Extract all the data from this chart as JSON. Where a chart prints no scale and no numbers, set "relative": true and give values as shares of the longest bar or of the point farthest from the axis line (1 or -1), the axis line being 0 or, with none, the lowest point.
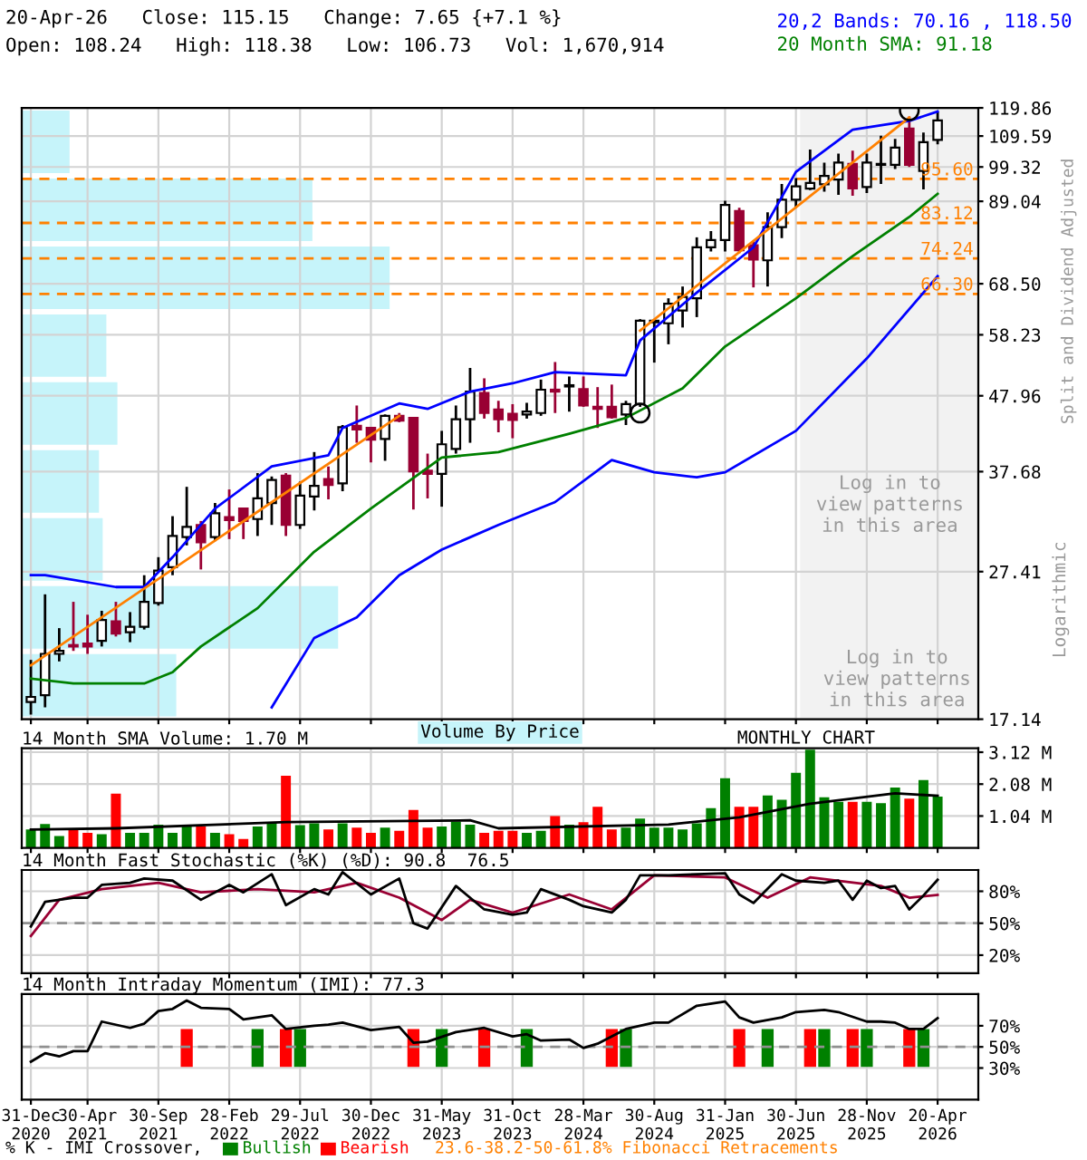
{
  "chart_data": [
    {
      "type": "candlestick",
      "x": [
        "2020-12",
        "2021-01",
        "2021-02",
        "2021-03",
        "2021-04",
        "2021-05",
        "2021-06",
        "2021-07",
        "2021-08",
        "2021-09",
        "2021-10",
        "2021-11",
        "2021-12",
        "2022-01",
        "2022-02",
        "2022-03",
        "2022-04",
        "2022-05",
        "2022-06",
        "2022-07",
        "2022-08",
        "2022-09",
        "2022-10",
        "2022-11",
        "2022-12",
        "2023-01",
        "2023-02",
        "2023-03",
        "2023-04",
        "2023-05",
        "2023-06",
        "2023-07",
        "2023-08",
        "2023-09",
        "2023-10",
        "2023-11",
        "2023-12",
        "2024-01",
        "2024-02",
        "2024-03",
        "2024-04",
        "2024-05",
        "2024-06",
        "2024-07",
        "2024-08",
        "2024-09",
        "2024-10",
        "2024-11",
        "2024-12",
        "2025-01",
        "2025-02",
        "2025-03",
        "2025-04",
        "2025-05",
        "2025-06",
        "2025-07",
        "2025-08",
        "2025-09",
        "2025-10",
        "2025-11",
        "2025-12",
        "2026-01",
        "2026-02",
        "2026-03",
        "2026-04"
      ],
      "ohlc": [
        [
          18.1,
          20.7,
          17.4,
          18.4
        ],
        [
          18.5,
          25.5,
          17.8,
          21.1
        ],
        [
          21.1,
          22.9,
          20.6,
          21.3
        ],
        [
          21.7,
          24.9,
          21.3,
          21.6
        ],
        [
          21.8,
          23.9,
          21.1,
          21.6
        ],
        [
          22.0,
          24.2,
          21.6,
          23.5
        ],
        [
          23.4,
          24.9,
          22.3,
          22.5
        ],
        [
          22.6,
          24.1,
          21.9,
          23.0
        ],
        [
          23.0,
          27.1,
          22.8,
          24.9
        ],
        [
          24.8,
          28.7,
          24.6,
          27.5
        ],
        [
          27.8,
          32.7,
          27.1,
          30.7
        ],
        [
          30.6,
          35.9,
          29.8,
          31.6
        ],
        [
          31.8,
          32.2,
          27.6,
          30.1
        ],
        [
          30.6,
          34.1,
          30.2,
          33.0
        ],
        [
          32.6,
          35.6,
          30.4,
          32.3
        ],
        [
          33.5,
          33.5,
          30.4,
          32.2
        ],
        [
          32.4,
          37.5,
          30.7,
          34.6
        ],
        [
          34.1,
          37.1,
          31.8,
          36.7
        ],
        [
          37.2,
          37.5,
          30.7,
          31.8
        ],
        [
          31.8,
          36.5,
          31.4,
          34.9
        ],
        [
          34.8,
          40.1,
          33.3,
          36.0
        ],
        [
          36.8,
          38.3,
          34.5,
          36.1
        ],
        [
          36.3,
          43.7,
          35.4,
          43.4
        ],
        [
          43.6,
          46.5,
          41.3,
          43.1
        ],
        [
          43.3,
          43.4,
          38.8,
          41.7
        ],
        [
          41.8,
          45.2,
          39.0,
          45.0
        ],
        [
          45.0,
          45.4,
          44.1,
          44.3
        ],
        [
          44.7,
          44.7,
          33.4,
          37.7
        ],
        [
          37.8,
          39.9,
          34.6,
          37.4
        ],
        [
          37.4,
          42.9,
          33.7,
          41.1
        ],
        [
          40.5,
          46.5,
          39.9,
          44.5
        ],
        [
          44.5,
          52.4,
          41.3,
          48.6
        ],
        [
          48.4,
          50.7,
          44.6,
          45.4
        ],
        [
          45.9,
          47.2,
          42.7,
          44.5
        ],
        [
          45.3,
          46.7,
          41.9,
          44.4
        ],
        [
          45.2,
          46.9,
          44.6,
          45.6
        ],
        [
          45.4,
          50.5,
          45.0,
          48.9
        ],
        [
          48.9,
          53.4,
          45.4,
          48.6
        ],
        [
          49.4,
          51.0,
          45.6,
          49.6
        ],
        [
          49.0,
          51.0,
          46.3,
          46.5
        ],
        [
          46.3,
          49.3,
          43.3,
          46.0
        ],
        [
          46.3,
          49.7,
          44.6,
          44.8
        ],
        [
          45.2,
          47.2,
          43.7,
          46.7
        ],
        [
          46.7,
          61.2,
          46.3,
          60.9
        ],
        [
          60.6,
          61.2,
          53.3,
          60.9
        ],
        [
          60.4,
          65.4,
          56.5,
          64.3
        ],
        [
          62.9,
          67.9,
          59.6,
          65.7
        ],
        [
          65.4,
          79.4,
          61.6,
          76.9
        ],
        [
          76.9,
          81.0,
          75.9,
          78.7
        ],
        [
          78.7,
          89.2,
          75.9,
          88.0
        ],
        [
          86.3,
          87.2,
          75.5,
          76.2
        ],
        [
          77.4,
          78.5,
          67.7,
          74.0
        ],
        [
          73.8,
          86.0,
          67.9,
          82.0
        ],
        [
          82.0,
          94.1,
          79.2,
          89.5
        ],
        [
          89.5,
          95.9,
          87.2,
          93.4
        ],
        [
          92.7,
          105.0,
          92.3,
          94.4
        ],
        [
          94.0,
          100.7,
          91.8,
          96.5
        ],
        [
          95.4,
          103.6,
          90.9,
          100.7
        ],
        [
          100.3,
          104.6,
          90.6,
          92.8
        ],
        [
          93.2,
          103.6,
          91.4,
          100.7
        ],
        [
          100.0,
          109.7,
          94.1,
          100.3
        ],
        [
          100.0,
          108.6,
          98.7,
          105.6
        ],
        [
          112.2,
          116.6,
          99.3,
          100.0
        ],
        [
          98.1,
          110.8,
          92.5,
          107.5
        ],
        [
          108.24,
          118.38,
          106.73,
          115.15
        ]
      ],
      "colors": [
        "#ffffff",
        "#ffffff",
        "#ffffff",
        "#990033",
        "#990033",
        "#ffffff",
        "#990033",
        "#ffffff",
        "#ffffff",
        "#ffffff",
        "#ffffff",
        "#ffffff",
        "#990033",
        "#ffffff",
        "#990033",
        "#990033",
        "#ffffff",
        "#ffffff",
        "#990033",
        "#ffffff",
        "#ffffff",
        "#990033",
        "#ffffff",
        "#990033",
        "#990033",
        "#ffffff",
        "#990033",
        "#990033",
        "#990033",
        "#ffffff",
        "#ffffff",
        "#ffffff",
        "#990033",
        "#990033",
        "#990033",
        "#ffffff",
        "#ffffff",
        "#990033",
        "#ffffff",
        "#990033",
        "#990033",
        "#990033",
        "#ffffff",
        "#ffffff",
        "#ffffff",
        "#ffffff",
        "#ffffff",
        "#ffffff",
        "#ffffff",
        "#ffffff",
        "#990033",
        "#990033",
        "#ffffff",
        "#ffffff",
        "#ffffff",
        "#ffffff",
        "#ffffff",
        "#ffffff",
        "#990033",
        "#ffffff",
        "#ffffff",
        "#ffffff",
        "#990033",
        "#ffffff",
        "#ffffff"
      ],
      "series": [
        {
          "type": "line",
          "name": "20,2 Bands: 70.16 , 118.50",
          "color": "#0000ff",
          "x": [
            "2020-12",
            "2021-01",
            "2021-06",
            "2021-08",
            "2021-10",
            "2022-01",
            "2022-05",
            "2022-09",
            "2022-10",
            "2023-02",
            "2023-04",
            "2023-07",
            "2023-10",
            "2024-01",
            "2024-06",
            "2024-07",
            "2024-11",
            "2025-03",
            "2025-06",
            "2025-10",
            "2026-02",
            "2026-04"
          ],
          "values": [
            27.1,
            27.1,
            26.1,
            26.1,
            28.7,
            33.5,
            38.3,
            39.7,
            43.3,
            46.8,
            46.0,
            48.6,
            49.9,
            51.7,
            51.2,
            57.2,
            66.6,
            76.9,
            97.8,
            111.8,
            115.0,
            118.5
          ]
        },
        {
          "type": "line",
          "color": "#0000ff",
          "x": [
            "2022-05",
            "2022-08",
            "2022-11",
            "2023-02",
            "2023-05",
            "2023-09",
            "2024-01",
            "2024-05",
            "2024-08",
            "2024-11",
            "2025-01",
            "2025-06",
            "2025-11",
            "2026-04"
          ],
          "values": [
            17.8,
            22.2,
            23.7,
            27.1,
            29.4,
            31.8,
            34.2,
            39.1,
            37.6,
            37.0,
            37.6,
            42.9,
            54.0,
            70.16
          ]
        },
        {
          "type": "line",
          "name": "20 Month SMA: 91.18",
          "color": "#008000",
          "x": [
            "2020-12",
            "2021-03",
            "2021-08",
            "2021-10",
            "2021-12",
            "2022-04",
            "2022-08",
            "2022-12",
            "2023-05",
            "2023-09",
            "2024-02",
            "2024-06",
            "2024-10",
            "2025-01",
            "2025-06",
            "2025-10",
            "2026-02",
            "2026-04"
          ],
          "values": [
            19.5,
            19.2,
            19.2,
            19.9,
            21.6,
            24.4,
            29.2,
            33.5,
            39.4,
            40.1,
            42.5,
            44.7,
            49.1,
            56.1,
            65.4,
            74.8,
            84.7,
            91.18
          ]
        },
        {
          "type": "line",
          "color": "#ff8000",
          "x": [
            "2020-12",
            "2023-02"
          ],
          "values": [
            20.35,
            45.0
          ]
        },
        {
          "type": "line",
          "color": "#ff8000",
          "x": [
            "2024-07",
            "2026-02"
          ],
          "values": [
            59.0,
            116.2
          ]
        },
        {
          "type": "scatter",
          "marker": "circle",
          "color": "#000000",
          "x": [
            "2024-07",
            "2026-02"
          ],
          "values": [
            45.4,
            118.8
          ]
        }
      ],
      "log": "y",
      "ylim": [
        17.14,
        119.86
      ],
      "yticks": [
        17.14,
        27.41,
        37.68,
        47.96,
        58.23,
        {
          "value": 68.5,
          "label": "68.50"
        },
        89.04,
        99.32,
        109.59,
        119.86
      ],
      "xlim": [
        "2020-11-12",
        "2026-06-28"
      ],
      "tick_labels": "y",
      "grid": true,
      "legend": "top right",
      "ylabel": "Split and Dividend Adjusted",
      "ref_lines": [
        {
          "axis": "y",
          "value": 95.6,
          "label": "95.60",
          "color": "#ff8000",
          "line_style": "dashed"
        },
        {
          "axis": "y",
          "value": 83.12,
          "label": "83.12",
          "color": "#ff8000",
          "line_style": "dashed"
        },
        {
          "axis": "y",
          "value": 74.24,
          "label": "74.24",
          "color": "#ff8000",
          "line_style": "dashed"
        },
        {
          "axis": "y",
          "value": 66.3,
          "label": "66.30",
          "color": "#ff8000",
          "line_style": "dashed"
        }
      ],
      "bands": [
        {
          "axis": "x",
          "from": "2025-06-13",
          "to": "2026-06-28",
          "label": "Log in to\nview patterns\nin this area",
          "color": "#f2f2f2"
        }
      ],
      "annotations": [
        "20-Apr-26   Close: 115.15   Change: 7.65 {+7.1 %}",
        "Open: 108.24   High: 118.38   Low: 106.73   Vol: 1,670,914",
        "Log in to\nview patterns\nin this area",
        "Logarithmic"
      ]
    },
    {
      "type": "bar",
      "orientation": "horizontal",
      "relative": true,
      "legend": "bottom",
      "categories": [
        null,
        null,
        null,
        null,
        null,
        null,
        null,
        null,
        null
      ],
      "series": [
        {
          "name": "Volume By Price",
          "color": "#c6f4fa",
          "values": [
            0.13,
            0.79,
            1,
            0.23,
            0.26,
            0.21,
            0.22,
            0.86,
            0.42
          ]
        }
      ]
    },
    {
      "type": "bar",
      "title": "14 Month SMA Volume: 1.70 M",
      "x": [
        "2020-12",
        "2021-01",
        "2021-02",
        "2021-03",
        "2021-04",
        "2021-05",
        "2021-06",
        "2021-07",
        "2021-08",
        "2021-09",
        "2021-10",
        "2021-11",
        "2021-12",
        "2022-01",
        "2022-02",
        "2022-03",
        "2022-04",
        "2022-05",
        "2022-06",
        "2022-07",
        "2022-08",
        "2022-09",
        "2022-10",
        "2022-11",
        "2022-12",
        "2023-01",
        "2023-02",
        "2023-03",
        "2023-04",
        "2023-05",
        "2023-06",
        "2023-07",
        "2023-08",
        "2023-09",
        "2023-10",
        "2023-11",
        "2023-12",
        "2024-01",
        "2024-02",
        "2024-03",
        "2024-04",
        "2024-05",
        "2024-06",
        "2024-07",
        "2024-08",
        "2024-09",
        "2024-10",
        "2024-11",
        "2024-12",
        "2025-01",
        "2025-02",
        "2025-03",
        "2025-04",
        "2025-05",
        "2025-06",
        "2025-07",
        "2025-08",
        "2025-09",
        "2025-10",
        "2025-11",
        "2025-12",
        "2026-01",
        "2026-02",
        "2026-03",
        "2026-04"
      ],
      "values": [
        0.6,
        0.78,
        0.39,
        0.58,
        0.49,
        0.45,
        1.77,
        0.49,
        0.49,
        0.76,
        0.49,
        0.7,
        0.7,
        0.49,
        0.45,
        0.29,
        0.7,
        0.82,
        2.35,
        0.74,
        0.8,
        0.6,
        0.8,
        0.66,
        0.49,
        0.66,
        0.56,
        1.24,
        0.66,
        0.7,
        0.86,
        0.76,
        0.49,
        0.56,
        0.56,
        0.49,
        0.56,
        1.04,
        0.76,
        0.84,
        1.34,
        0.6,
        0.66,
        0.96,
        0.66,
        0.66,
        0.6,
        0.8,
        1.3,
        2.27,
        1.34,
        1.34,
        1.71,
        1.57,
        2.45,
        3.2,
        1.65,
        1.5,
        1.5,
        1.5,
        1.46,
        1.97,
        1.61,
        2.21,
        1.67
      ],
      "colors": [
        "#008000",
        "#008000",
        "#008000",
        "#ff0000",
        "#ff0000",
        "#008000",
        "#ff0000",
        "#008000",
        "#008000",
        "#008000",
        "#008000",
        "#008000",
        "#ff0000",
        "#008000",
        "#ff0000",
        "#ff0000",
        "#008000",
        "#008000",
        "#ff0000",
        "#008000",
        "#008000",
        "#ff0000",
        "#008000",
        "#ff0000",
        "#ff0000",
        "#008000",
        "#ff0000",
        "#ff0000",
        "#ff0000",
        "#008000",
        "#008000",
        "#008000",
        "#ff0000",
        "#ff0000",
        "#ff0000",
        "#008000",
        "#008000",
        "#ff0000",
        "#008000",
        "#ff0000",
        "#ff0000",
        "#ff0000",
        "#008000",
        "#008000",
        "#008000",
        "#008000",
        "#008000",
        "#008000",
        "#008000",
        "#008000",
        "#ff0000",
        "#ff0000",
        "#008000",
        "#008000",
        "#008000",
        "#008000",
        "#008000",
        "#008000",
        "#ff0000",
        "#008000",
        "#008000",
        "#008000",
        "#ff0000",
        "#008000",
        "#008000"
      ],
      "series": [
        {
          "type": "line",
          "color": "#000000",
          "x": [
            "2020-12",
            "2021-06",
            "2022-06",
            "2023-07",
            "2023-09",
            "2024-09",
            "2025-02",
            "2025-07",
            "2026-01",
            "2026-04"
          ],
          "values": [
            0.6,
            0.64,
            0.84,
            0.9,
            0.64,
            0.76,
            1.0,
            1.44,
            1.78,
            1.7
          ]
        }
      ],
      "ylim": [
        0,
        3.25
      ],
      "yticks": [
        {
          "value": 1.04,
          "label": "1.04 M"
        },
        {
          "value": 2.08,
          "label": "2.08 M"
        },
        {
          "value": 3.12,
          "label": "3.12 M"
        }
      ],
      "xlim": [
        "2020-11-12",
        "2026-06-28"
      ],
      "tick_labels": "y",
      "grid": true,
      "annotations": [
        "MONTHLY CHART"
      ]
    },
    {
      "type": "line",
      "title": "14 Month Fast Stochastic (%K) (%D): 90.8  76.5",
      "series": [
        {
          "color": "#990033",
          "x": [
            "2020-12",
            "2021-02",
            "2021-05",
            "2021-09",
            "2021-12",
            "2022-04",
            "2022-08",
            "2022-11",
            "2023-02",
            "2023-05",
            "2023-07",
            "2023-10",
            "2024-02",
            "2024-05",
            "2024-08",
            "2025-01",
            "2025-04",
            "2025-07",
            "2025-12",
            "2026-02",
            "2026-04"
          ],
          "values": [
            38,
            72,
            82,
            88,
            79,
            82,
            79,
            88,
            74,
            53,
            72,
            60,
            77,
            63,
            95,
            93,
            74,
            93,
            85,
            74,
            76.5
          ]
        },
        {
          "color": "#000000",
          "x": [
            "2020-12",
            "2021-01",
            "2021-03",
            "2021-04",
            "2021-05",
            "2021-07",
            "2021-08",
            "2021-10",
            "2021-12",
            "2022-02",
            "2022-03",
            "2022-05",
            "2022-06",
            "2022-08",
            "2022-09",
            "2022-10",
            "2022-12",
            "2023-02",
            "2023-03",
            "2023-04",
            "2023-06",
            "2023-08",
            "2023-10",
            "2023-11",
            "2023-12",
            "2024-02",
            "2024-03",
            "2024-05",
            "2024-06",
            "2024-07",
            "2024-09",
            "2025-01",
            "2025-02",
            "2025-03",
            "2025-05",
            "2025-06",
            "2025-08",
            "2025-09",
            "2025-10",
            "2025-11",
            "2025-12",
            "2026-01",
            "2026-02",
            "2026-03",
            "2026-04"
          ],
          "values": [
            47,
            70,
            74,
            74,
            86,
            88,
            92,
            90,
            72,
            86,
            79,
            96,
            67,
            82,
            77,
            98,
            77,
            92,
            50,
            45,
            85,
            63,
            58,
            60,
            82,
            72,
            66,
            60,
            72,
            95,
            95,
            97,
            77,
            69,
            96,
            90,
            88,
            90,
            72,
            90,
            83,
            85,
            63,
            76,
            90.8
          ]
        }
      ],
      "ylim": [
        3,
        100
      ],
      "yticks": [
        {
          "value": 20,
          "label": "20%"
        },
        {
          "value": 50,
          "label": "50%"
        },
        {
          "value": 80,
          "label": "80%"
        }
      ],
      "xlim": [
        "2020-11-12",
        "2026-06-28"
      ],
      "tick_labels": "y",
      "grid": true,
      "ref_lines": [
        {
          "axis": "y",
          "value": 50,
          "color": "#909090",
          "line_style": "dashed"
        }
      ]
    },
    {
      "type": "line",
      "title": "14 Month Intraday Momentum (IMI): 77.3",
      "series": [
        {
          "type": "bar",
          "name": "Bearish",
          "color": "#ff0000",
          "x": [
            "2021-11",
            "2022-06",
            "2023-03",
            "2023-08",
            "2024-05",
            "2025-02",
            "2025-07",
            "2025-10",
            "2026-02"
          ],
          "base": [
            31,
            31,
            31,
            31,
            31,
            31,
            31,
            31,
            31
          ],
          "values": [
            36,
            36,
            36,
            36,
            36,
            36,
            36,
            36,
            36
          ]
        },
        {
          "type": "bar",
          "name": "Bullish",
          "color": "#008000",
          "x": [
            "2022-04",
            "2022-07",
            "2023-05",
            "2023-11",
            "2024-06",
            "2025-04",
            "2025-08",
            "2025-11",
            "2026-03"
          ],
          "base": [
            31,
            31,
            31,
            31,
            31,
            31,
            31,
            31,
            31
          ],
          "values": [
            36,
            36,
            36,
            36,
            36,
            36,
            36,
            36,
            36
          ]
        },
        {
          "color": "#000000",
          "x": [
            "2020-12",
            "2021-01",
            "2021-02",
            "2021-03",
            "2021-04",
            "2021-05",
            "2021-07",
            "2021-08",
            "2021-09",
            "2021-10",
            "2021-11",
            "2021-12",
            "2022-02",
            "2022-03",
            "2022-04",
            "2022-05",
            "2022-06",
            "2022-08",
            "2022-09",
            "2022-10",
            "2022-12",
            "2023-02",
            "2023-03",
            "2023-04",
            "2023-06",
            "2023-08",
            "2023-10",
            "2023-11",
            "2023-12",
            "2024-02",
            "2024-03",
            "2024-04",
            "2024-06",
            "2024-08",
            "2024-09",
            "2024-11",
            "2025-01",
            "2025-02",
            "2025-03",
            "2025-05",
            "2025-06",
            "2025-08",
            "2025-09",
            "2025-11",
            "2025-12",
            "2026-01",
            "2026-02",
            "2026-03",
            "2026-04"
          ],
          "values": [
            36,
            44,
            41,
            46,
            46,
            74,
            68,
            72,
            84,
            86,
            94,
            87,
            86,
            76,
            78,
            80,
            67,
            70,
            71,
            73,
            66,
            69,
            54,
            55,
            64,
            68,
            60,
            62,
            56,
            57,
            49,
            53,
            67,
            73,
            73,
            89,
            93,
            78,
            73,
            78,
            83,
            85,
            83,
            74,
            74,
            73,
            67,
            67,
            77.3
          ]
        }
      ],
      "ylim": [
        0,
        100
      ],
      "yticks": [
        {
          "value": 30,
          "label": "30%"
        },
        {
          "value": 50,
          "label": "50%"
        },
        {
          "value": 70,
          "label": "70%"
        }
      ],
      "xlim": [
        "2020-11-12",
        "2026-06-28"
      ],
      "xticks": [
        {
          "value": "2020-12",
          "label": "31-Dec\n2020"
        },
        {
          "value": "2021-04",
          "label": "30-Apr\n2021"
        },
        {
          "value": "2021-09",
          "label": "30-Sep\n2021"
        },
        {
          "value": "2022-02",
          "label": "28-Feb\n2022"
        },
        {
          "value": "2022-07",
          "label": "29-Jul\n2022"
        },
        {
          "value": "2022-12",
          "label": "30-Dec\n2022"
        },
        {
          "value": "2023-05",
          "label": "31-May\n2023"
        },
        {
          "value": "2023-10",
          "label": "31-Oct\n2023"
        },
        {
          "value": "2024-03",
          "label": "28-Mar\n2024"
        },
        {
          "value": "2024-08",
          "label": "30-Aug\n2024"
        },
        {
          "value": "2025-01",
          "label": "31-Jan\n2025"
        },
        {
          "value": "2025-06",
          "label": "30-Jun\n2025"
        },
        {
          "value": "2025-11",
          "label": "28-Nov\n2025"
        },
        {
          "value": "2026-04",
          "label": "20-Apr\n2026"
        }
      ],
      "grid": true,
      "legend": "bottom",
      "legend_title": "% K - IMI Crossover,",
      "ref_lines": [
        {
          "axis": "y",
          "value": 50,
          "color": "#909090",
          "line_style": "dashed"
        }
      ],
      "annotations": [
        "23.6-38.2-50-61.8% Fibonacci Retracements"
      ]
    }
  ]
}
